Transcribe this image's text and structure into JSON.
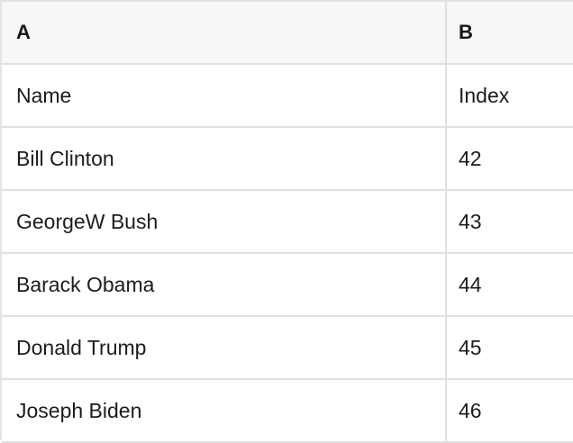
{
  "table": {
    "columns": [
      {
        "key": "A",
        "label": "A"
      },
      {
        "key": "B",
        "label": "B"
      }
    ],
    "rows": [
      [
        "Name",
        "Index"
      ],
      [
        "Bill Clinton",
        "42"
      ],
      [
        "GeorgeW Bush",
        "43"
      ],
      [
        "Barack Obama",
        "44"
      ],
      [
        "Donald Trump",
        "45"
      ],
      [
        "Joseph Biden",
        "46"
      ]
    ]
  },
  "colors": {
    "header_bg": "#f7f7f7",
    "grid_border": "#e0e0e0",
    "text": "#1c1c1c"
  }
}
